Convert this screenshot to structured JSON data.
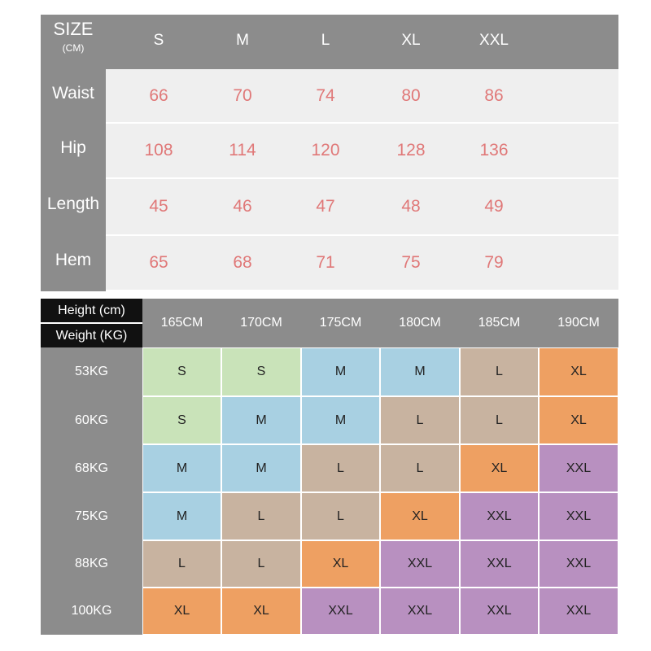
{
  "size_table": {
    "header": {
      "label": "SIZE",
      "unit": "(CM)"
    },
    "columns": [
      "S",
      "M",
      "L",
      "XL",
      "XXL"
    ],
    "rows": [
      {
        "label": "Waist",
        "values": [
          66,
          70,
          74,
          80,
          86
        ]
      },
      {
        "label": "Hip",
        "values": [
          108,
          114,
          120,
          128,
          136
        ]
      },
      {
        "label": "Length",
        "values": [
          45,
          46,
          47,
          48,
          49
        ]
      },
      {
        "label": "Hem",
        "values": [
          65,
          68,
          71,
          75,
          79
        ]
      }
    ]
  },
  "fit_table": {
    "height_label": "Height (cm)",
    "weight_label": "Weight (KG)",
    "heights": [
      "165CM",
      "170CM",
      "175CM",
      "180CM",
      "185CM",
      "190CM"
    ],
    "rows": [
      {
        "weight": "53KG",
        "sizes": [
          "S",
          "S",
          "M",
          "M",
          "L",
          "XL"
        ]
      },
      {
        "weight": "60KG",
        "sizes": [
          "S",
          "M",
          "M",
          "L",
          "L",
          "XL"
        ]
      },
      {
        "weight": "68KG",
        "sizes": [
          "M",
          "M",
          "L",
          "L",
          "XL",
          "XXL"
        ]
      },
      {
        "weight": "75KG",
        "sizes": [
          "M",
          "L",
          "L",
          "XL",
          "XXL",
          "XXL"
        ]
      },
      {
        "weight": "88KG",
        "sizes": [
          "L",
          "L",
          "XL",
          "XXL",
          "XXL",
          "XXL"
        ]
      },
      {
        "weight": "100KG",
        "sizes": [
          "XL",
          "XL",
          "XXL",
          "XXL",
          "XXL",
          "XXL"
        ]
      }
    ],
    "size_colors": {
      "S": "#c9e3b9",
      "M": "#a8d0e2",
      "L": "#c8b3a0",
      "XL": "#eea062",
      "XXL": "#b890c0"
    }
  }
}
